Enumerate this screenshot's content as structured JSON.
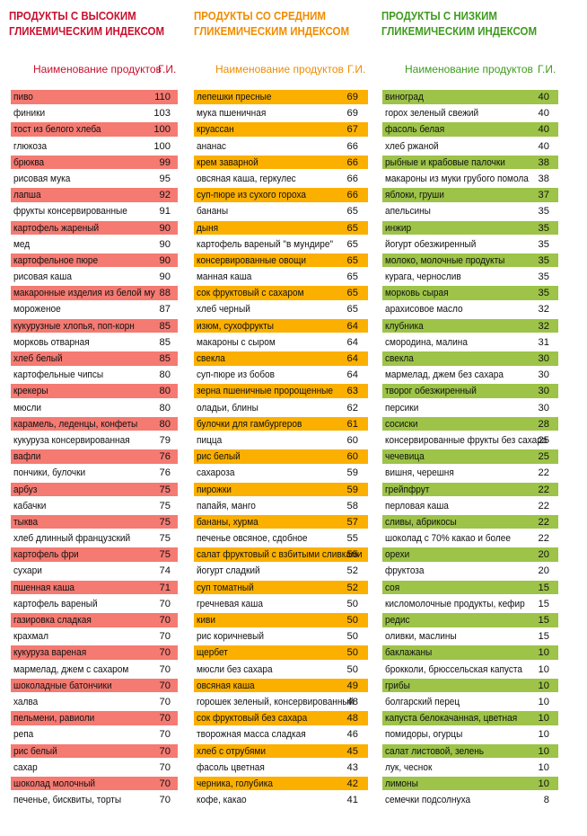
{
  "colors": {
    "high": "#f47a72",
    "medium": "#fbb000",
    "low": "#9dc348",
    "high_title": "#c8102e",
    "medium_title": "#f08c00",
    "low_title": "#3f9b1f"
  },
  "columns": [
    {
      "title_line1": "ПРОДУКТЫ С ВЫСОКИМ",
      "title_line2": "ГЛИКЕМИЧЕСКИМ ИНДЕКСОМ",
      "header_name": "Наименование продуктов",
      "header_gi": "Г.И.",
      "rows": [
        {
          "name": "пиво",
          "gi": "110"
        },
        {
          "name": "финики",
          "gi": "103"
        },
        {
          "name": "тост из белого хлеба",
          "gi": "100"
        },
        {
          "name": "глюкоза",
          "gi": "100"
        },
        {
          "name": "брюква",
          "gi": "99"
        },
        {
          "name": "рисовая мука",
          "gi": "95"
        },
        {
          "name": "лапша",
          "gi": "92"
        },
        {
          "name": "фрукты консервированные",
          "gi": "91"
        },
        {
          "name": "картофель жареный",
          "gi": "90"
        },
        {
          "name": "мед",
          "gi": "90"
        },
        {
          "name": "картофельное пюре",
          "gi": "90"
        },
        {
          "name": "рисовая каша",
          "gi": "90"
        },
        {
          "name": "макаронные изделия из белой му",
          "gi": "88"
        },
        {
          "name": "мороженое",
          "gi": "87"
        },
        {
          "name": "кукурузные хлопья, поп-корн",
          "gi": "85"
        },
        {
          "name": "морковь отварная",
          "gi": "85"
        },
        {
          "name": "хлеб белый",
          "gi": "85"
        },
        {
          "name": "картофельные чипсы",
          "gi": "80"
        },
        {
          "name": "крекеры",
          "gi": "80"
        },
        {
          "name": "мюсли",
          "gi": "80"
        },
        {
          "name": "карамель, леденцы, конфеты",
          "gi": "80"
        },
        {
          "name": "кукуруза консервированная",
          "gi": "79"
        },
        {
          "name": "вафли",
          "gi": "76"
        },
        {
          "name": "пончики, булочки",
          "gi": "76"
        },
        {
          "name": "арбуз",
          "gi": "75"
        },
        {
          "name": "кабачки",
          "gi": "75"
        },
        {
          "name": "тыква",
          "gi": "75"
        },
        {
          "name": "хлеб длинный французский",
          "gi": "75"
        },
        {
          "name": "картофель фри",
          "gi": "75"
        },
        {
          "name": "сухари",
          "gi": "74"
        },
        {
          "name": "пшенная каша",
          "gi": "71"
        },
        {
          "name": "картофель вареный",
          "gi": "70"
        },
        {
          "name": "газировка сладкая",
          "gi": "70"
        },
        {
          "name": "крахмал",
          "gi": "70"
        },
        {
          "name": "кукуруза вареная",
          "gi": "70"
        },
        {
          "name": "мармелад, джем с сахаром",
          "gi": "70"
        },
        {
          "name": "шоколадные батончики",
          "gi": "70"
        },
        {
          "name": "халва",
          "gi": "70"
        },
        {
          "name": "пельмени, равиоли",
          "gi": "70"
        },
        {
          "name": "репа",
          "gi": "70"
        },
        {
          "name": "рис белый",
          "gi": "70"
        },
        {
          "name": "сахар",
          "gi": "70"
        },
        {
          "name": "шоколад молочный",
          "gi": "70"
        },
        {
          "name": "печенье, бисквиты, торты",
          "gi": "70"
        }
      ]
    },
    {
      "title_line1": "ПРОДУКТЫ СО СРЕДНИМ",
      "title_line2": "ГЛИКЕМИЧЕСКИМ ИНДЕКСОМ",
      "header_name": "Наименование продуктов",
      "header_gi": "Г.И.",
      "rows": [
        {
          "name": "лепешки пресные",
          "gi": "69"
        },
        {
          "name": "мука пшеничная",
          "gi": "69"
        },
        {
          "name": "круассан",
          "gi": "67"
        },
        {
          "name": "ананас",
          "gi": "66"
        },
        {
          "name": "крем заварной",
          "gi": "66"
        },
        {
          "name": "овсяная каша, геркулес",
          "gi": "66"
        },
        {
          "name": "суп-пюре из сухого гороха",
          "gi": "66"
        },
        {
          "name": "бананы",
          "gi": "65"
        },
        {
          "name": "дыня",
          "gi": "65"
        },
        {
          "name": "картофель вареный \"в мундире\"",
          "gi": "65"
        },
        {
          "name": "консервированные овощи",
          "gi": "65"
        },
        {
          "name": "манная каша",
          "gi": "65"
        },
        {
          "name": "сок фруктовый с сахаром",
          "gi": "65"
        },
        {
          "name": "хлеб черный",
          "gi": "65"
        },
        {
          "name": "изюм, сухофрукты",
          "gi": "64"
        },
        {
          "name": "макароны с сыром",
          "gi": "64"
        },
        {
          "name": "свекла",
          "gi": "64"
        },
        {
          "name": "суп-пюре из бобов",
          "gi": "64"
        },
        {
          "name": "зерна пшеничные пророщенные",
          "gi": "63"
        },
        {
          "name": "оладьи, блины",
          "gi": "62"
        },
        {
          "name": "булочки для гамбургеров",
          "gi": "61"
        },
        {
          "name": "пицца",
          "gi": "60"
        },
        {
          "name": "рис белый",
          "gi": "60"
        },
        {
          "name": "сахароза",
          "gi": "59"
        },
        {
          "name": "пирожки",
          "gi": "59"
        },
        {
          "name": "папайя, манго",
          "gi": "58"
        },
        {
          "name": "бананы, хурма",
          "gi": "57"
        },
        {
          "name": "печенье овсяное, сдобное",
          "gi": "55"
        },
        {
          "name": "салат фруктовый с взбитыми сливками",
          "gi": "55"
        },
        {
          "name": "йогурт сладкий",
          "gi": "52"
        },
        {
          "name": "суп томатный",
          "gi": "52"
        },
        {
          "name": "гречневая каша",
          "gi": "50"
        },
        {
          "name": "киви",
          "gi": "50"
        },
        {
          "name": "рис коричневый",
          "gi": "50"
        },
        {
          "name": "щербет",
          "gi": "50"
        },
        {
          "name": "мюсли без сахара",
          "gi": "50"
        },
        {
          "name": "овсяная каша",
          "gi": "49"
        },
        {
          "name": "горошек зеленый, консервированный",
          "gi": "48"
        },
        {
          "name": "сок фруктовый без сахара",
          "gi": "48"
        },
        {
          "name": "творожная масса сладкая",
          "gi": "46"
        },
        {
          "name": "хлеб с отрубями",
          "gi": "45"
        },
        {
          "name": "фасоль цветная",
          "gi": "43"
        },
        {
          "name": "черника, голубика",
          "gi": "42"
        },
        {
          "name": "кофе, какао",
          "gi": "41"
        }
      ]
    },
    {
      "title_line1": "ПРОДУКТЫ С НИЗКИМ",
      "title_line2": "ГЛИКЕМИЧЕСКИМ ИНДЕКСОМ",
      "header_name": "Наименование продуктов",
      "header_gi": "Г.И.",
      "rows": [
        {
          "name": "виноград",
          "gi": "40"
        },
        {
          "name": "горох зеленый свежий",
          "gi": "40"
        },
        {
          "name": "фасоль белая",
          "gi": "40"
        },
        {
          "name": "хлеб ржаной",
          "gi": "40"
        },
        {
          "name": "рыбные и крабовые палочки",
          "gi": "38"
        },
        {
          "name": "макароны из муки грубого помола",
          "gi": "38"
        },
        {
          "name": "яблоки, груши",
          "gi": "37"
        },
        {
          "name": "апельсины",
          "gi": "35"
        },
        {
          "name": "инжир",
          "gi": "35"
        },
        {
          "name": "йогурт обезжиренный",
          "gi": "35"
        },
        {
          "name": "молоко, молочные продукты",
          "gi": "35"
        },
        {
          "name": "курага, чернослив",
          "gi": "35"
        },
        {
          "name": "морковь сырая",
          "gi": "35"
        },
        {
          "name": "арахисовое масло",
          "gi": "32"
        },
        {
          "name": "клубника",
          "gi": "32"
        },
        {
          "name": "смородина, малина",
          "gi": "31"
        },
        {
          "name": "свекла",
          "gi": "30"
        },
        {
          "name": "мармелад, джем без сахара",
          "gi": "30"
        },
        {
          "name": "творог обезжиренный",
          "gi": "30"
        },
        {
          "name": "персики",
          "gi": "30"
        },
        {
          "name": "сосиски",
          "gi": "28"
        },
        {
          "name": "консервированные фрукты без сахара",
          "gi": "25"
        },
        {
          "name": "чечевица",
          "gi": "25"
        },
        {
          "name": "вишня, черешня",
          "gi": "22"
        },
        {
          "name": "грейпфрут",
          "gi": "22"
        },
        {
          "name": "перловая каша",
          "gi": "22"
        },
        {
          "name": "сливы, абрикосы",
          "gi": "22"
        },
        {
          "name": "шоколад с 70% какао и более",
          "gi": "22"
        },
        {
          "name": "орехи",
          "gi": "20"
        },
        {
          "name": "фруктоза",
          "gi": "20"
        },
        {
          "name": "соя",
          "gi": "15"
        },
        {
          "name": "кисломолочные продукты, кефир",
          "gi": "15"
        },
        {
          "name": "редис",
          "gi": "15"
        },
        {
          "name": "оливки, маслины",
          "gi": "15"
        },
        {
          "name": "баклажаны",
          "gi": "10"
        },
        {
          "name": "брокколи, брюссельская капуста",
          "gi": "10"
        },
        {
          "name": "грибы",
          "gi": "10"
        },
        {
          "name": "болгарский перец",
          "gi": "10"
        },
        {
          "name": "капуста белокачанная, цветная",
          "gi": "10"
        },
        {
          "name": "помидоры, огурцы",
          "gi": "10"
        },
        {
          "name": "салат листовой, зелень",
          "gi": "10"
        },
        {
          "name": "лук, чеснок",
          "gi": "10"
        },
        {
          "name": "лимоны",
          "gi": "10"
        },
        {
          "name": "семечки подсолнуха",
          "gi": "8"
        }
      ]
    }
  ]
}
